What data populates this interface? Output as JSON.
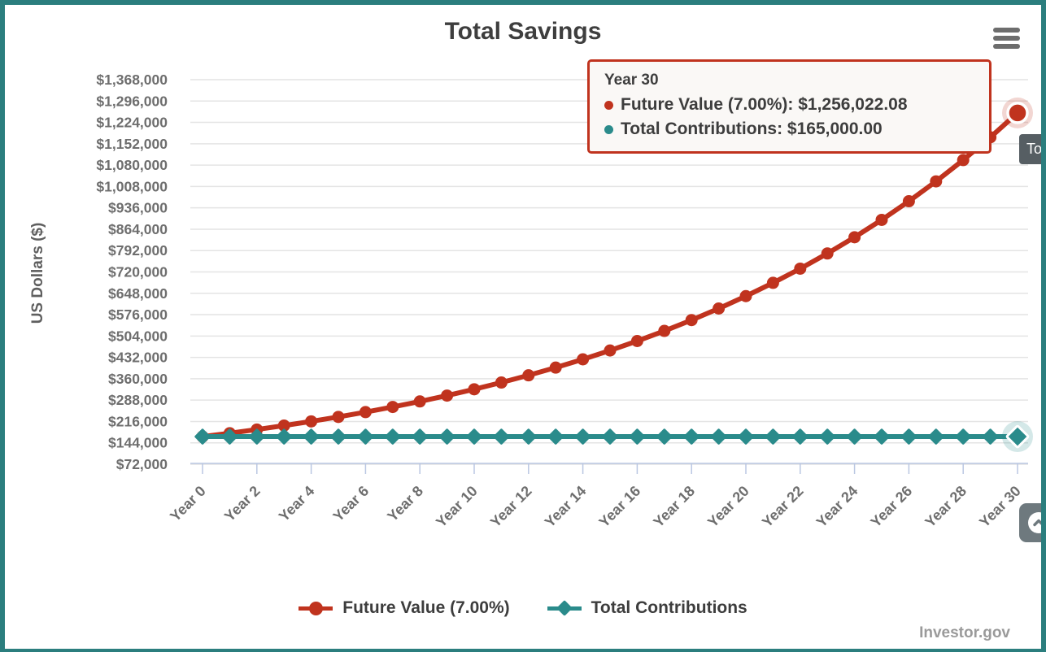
{
  "page": {
    "title": "Total Savings"
  },
  "brand": {
    "text": "Investor.gov"
  },
  "menu": {
    "icon": "hamburger-icon"
  },
  "tooltip": {
    "header": "Year 30",
    "rows": [
      {
        "text": "Future Value (7.00%): $1,256,022.08",
        "color": "#c0331e"
      },
      {
        "text": "Total Contributions: $165,000.00",
        "color": "#2a8b8b"
      }
    ]
  },
  "partial_tooltip": {
    "text": "Tot"
  },
  "legend": {
    "items": [
      {
        "label": "Future Value (7.00%)",
        "color": "#c0331e",
        "marker": "circle"
      },
      {
        "label": "Total Contributions",
        "color": "#2a8b8b",
        "marker": "diamond"
      }
    ]
  },
  "colors": {
    "future_value": "#c0331e",
    "contributions": "#2a8b8b",
    "page_border": "#2b7e7e",
    "gridline": "#e4e4e4",
    "axis_line": "#bac7e2",
    "tooltip_border": "#c0331e"
  },
  "chart_data": {
    "type": "line",
    "title": "Total Savings",
    "xlabel": "",
    "ylabel": "US Dollars ($)",
    "categories": [
      "Year 0",
      "Year 1",
      "Year 2",
      "Year 3",
      "Year 4",
      "Year 5",
      "Year 6",
      "Year 7",
      "Year 8",
      "Year 9",
      "Year 10",
      "Year 11",
      "Year 12",
      "Year 13",
      "Year 14",
      "Year 15",
      "Year 16",
      "Year 17",
      "Year 18",
      "Year 19",
      "Year 20",
      "Year 21",
      "Year 22",
      "Year 23",
      "Year 24",
      "Year 25",
      "Year 26",
      "Year 27",
      "Year 28",
      "Year 29",
      "Year 30"
    ],
    "x_tick_every": 2,
    "ylim": [
      72000,
      1368000
    ],
    "y_ticks": [
      72000,
      144000,
      216000,
      288000,
      360000,
      432000,
      504000,
      576000,
      648000,
      720000,
      792000,
      864000,
      936000,
      1008000,
      1080000,
      1152000,
      1224000,
      1296000,
      1368000
    ],
    "grid": "horizontal",
    "legend_position": "bottom",
    "series": [
      {
        "name": "Future Value (7.00%)",
        "color": "#c0331e",
        "marker": "circle",
        "values": [
          165000.0,
          176550.0,
          188908.5,
          202132.1,
          216281.34,
          231421.04,
          247620.51,
          264953.94,
          283500.72,
          303345.77,
          324579.98,
          347300.57,
          371611.61,
          397624.43,
          425458.14,
          455240.21,
          487107.02,
          521204.51,
          557688.83,
          596727.05,
          638497.94,
          683192.8,
          731016.29,
          782187.43,
          836940.55,
          895526.39,
          958213.24,
          1025288.17,
          1097058.34,
          1173852.42,
          1256022.08
        ]
      },
      {
        "name": "Total Contributions",
        "color": "#2a8b8b",
        "marker": "diamond",
        "values": [
          165000,
          165000,
          165000,
          165000,
          165000,
          165000,
          165000,
          165000,
          165000,
          165000,
          165000,
          165000,
          165000,
          165000,
          165000,
          165000,
          165000,
          165000,
          165000,
          165000,
          165000,
          165000,
          165000,
          165000,
          165000,
          165000,
          165000,
          165000,
          165000,
          165000,
          165000
        ]
      }
    ],
    "highlight": {
      "category": "Year 30",
      "index": 30
    }
  }
}
